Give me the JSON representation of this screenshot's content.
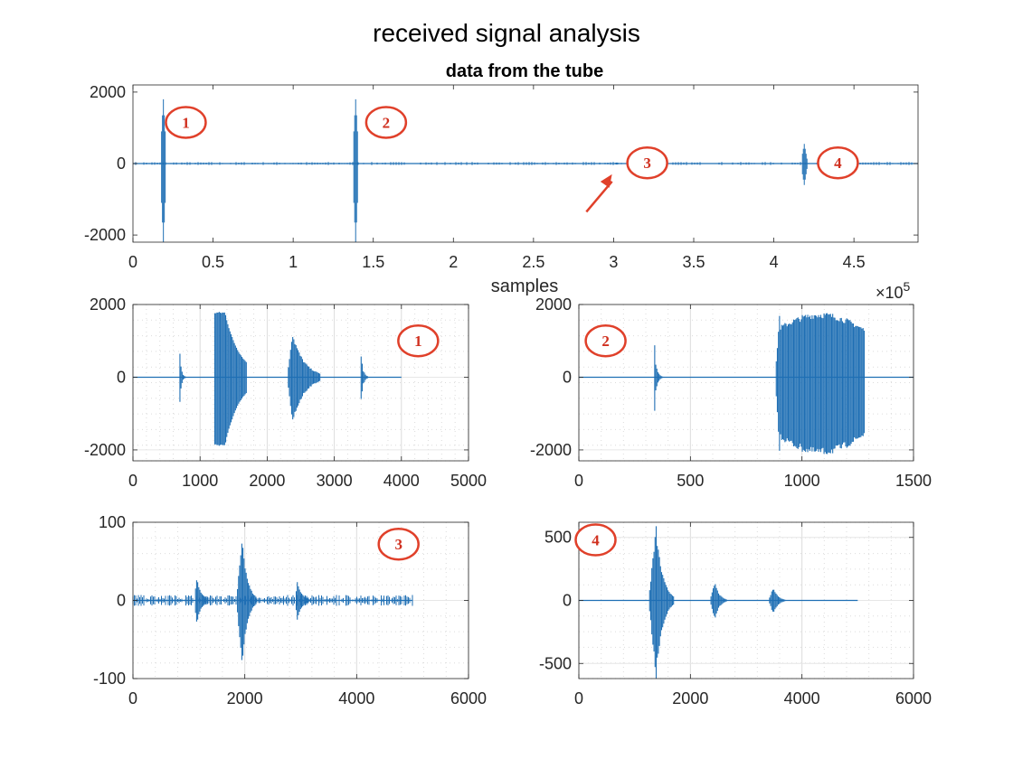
{
  "figure": {
    "title": "received signal analysis",
    "colors": {
      "signal": "#1f6fb4",
      "callout": "#e0402a",
      "axes": "#262626",
      "grid": "#dcdcdc"
    }
  },
  "chart_data": [
    {
      "type": "line",
      "panel": "top",
      "title": "data from the tube",
      "xlabel": "samples",
      "ylabel": "",
      "xlim": [
        0,
        4.9
      ],
      "ylim": [
        -2200,
        2200
      ],
      "xticks": [
        "0",
        "0.5",
        "1",
        "1.5",
        "2",
        "2.5",
        "3",
        "3.5",
        "4",
        "4.5"
      ],
      "yticks": [
        "-2000",
        "0",
        "2000"
      ],
      "x_exponent": "×10^5",
      "grid": false,
      "series": [
        {
          "values_description_free": true,
          "bursts": [
            {
              "x": 0.19,
              "ymax": 1800,
              "ymin": -2200
            },
            {
              "x": 1.39,
              "ymax": 1800,
              "ymin": -2200
            },
            {
              "x": 3.02,
              "ymax": 30,
              "ymin": -30
            },
            {
              "x": 4.19,
              "ymax": 550,
              "ymin": -600
            }
          ]
        }
      ],
      "annotations": [
        {
          "label": "1",
          "x": 0.33,
          "y": 1150
        },
        {
          "label": "2",
          "x": 1.58,
          "y": 1150
        },
        {
          "label": "3",
          "x": 3.21,
          "y": 20
        },
        {
          "label": "4",
          "x": 4.4,
          "y": 20
        }
      ],
      "arrow": {
        "from": [
          2.83,
          -1350
        ],
        "to": [
          2.99,
          -300
        ]
      }
    },
    {
      "type": "line",
      "panel": "middle-left",
      "xlim": [
        0,
        5000
      ],
      "ylim": [
        -2300,
        2000
      ],
      "xticks": [
        "0",
        "1000",
        "2000",
        "3000",
        "4000",
        "5000"
      ],
      "yticks": [
        "-2000",
        "0",
        "2000"
      ],
      "grid": true,
      "signal_end": 4000,
      "bursts": [
        {
          "x": 700,
          "width": 90,
          "amp": 800,
          "kind": "spike"
        },
        {
          "x": 1220,
          "width": 480,
          "amp": 1800,
          "kind": "clipped"
        },
        {
          "x": 2300,
          "width": 500,
          "amp": 1300,
          "kind": "decay"
        },
        {
          "x": 3400,
          "width": 120,
          "amp": 700,
          "kind": "spike"
        }
      ],
      "annotations": [
        {
          "label": "1",
          "x": 4250,
          "y": 1000
        }
      ]
    },
    {
      "type": "line",
      "panel": "middle-right",
      "xlim": [
        0,
        1500
      ],
      "ylim": [
        -2300,
        2000
      ],
      "xticks": [
        "0",
        "500",
        "1000",
        "1500"
      ],
      "yticks": [
        "-2000",
        "0",
        "2000"
      ],
      "grid": true,
      "signal_end": 1500,
      "bursts": [
        {
          "x": 340,
          "width": 40,
          "amp": 900,
          "kind": "spike"
        },
        {
          "x": 880,
          "width": 400,
          "amp": 1800,
          "kind": "envelope"
        }
      ],
      "annotations": [
        {
          "label": "2",
          "x": 120,
          "y": 1000
        }
      ]
    },
    {
      "type": "line",
      "panel": "bottom-left",
      "xlim": [
        0,
        6000
      ],
      "ylim": [
        -100,
        100
      ],
      "xticks": [
        "0",
        "2000",
        "4000",
        "6000"
      ],
      "yticks": [
        "-100",
        "0",
        "100"
      ],
      "grid": true,
      "signal_end": 5000,
      "bursts": [
        {
          "x": 1100,
          "width": 250,
          "amp": 30,
          "kind": "decay"
        },
        {
          "x": 1850,
          "width": 350,
          "amp": 85,
          "kind": "diamond"
        },
        {
          "x": 2900,
          "width": 250,
          "amp": 25,
          "kind": "decay"
        }
      ],
      "annotations": [
        {
          "label": "3",
          "x": 4750,
          "y": 72
        }
      ]
    },
    {
      "type": "line",
      "panel": "bottom-right",
      "xlim": [
        0,
        6000
      ],
      "ylim": [
        -620,
        620
      ],
      "xticks": [
        "0",
        "2000",
        "4000",
        "6000"
      ],
      "yticks": [
        "-500",
        "0",
        "500"
      ],
      "grid": true,
      "signal_end": 5000,
      "bursts": [
        {
          "x": 1250,
          "width": 450,
          "amp": 600,
          "kind": "diamond"
        },
        {
          "x": 2350,
          "width": 300,
          "amp": 150,
          "kind": "diamond"
        },
        {
          "x": 3400,
          "width": 300,
          "amp": 110,
          "kind": "diamond"
        }
      ],
      "annotations": [
        {
          "label": "4",
          "x": 300,
          "y": 480
        }
      ]
    }
  ]
}
